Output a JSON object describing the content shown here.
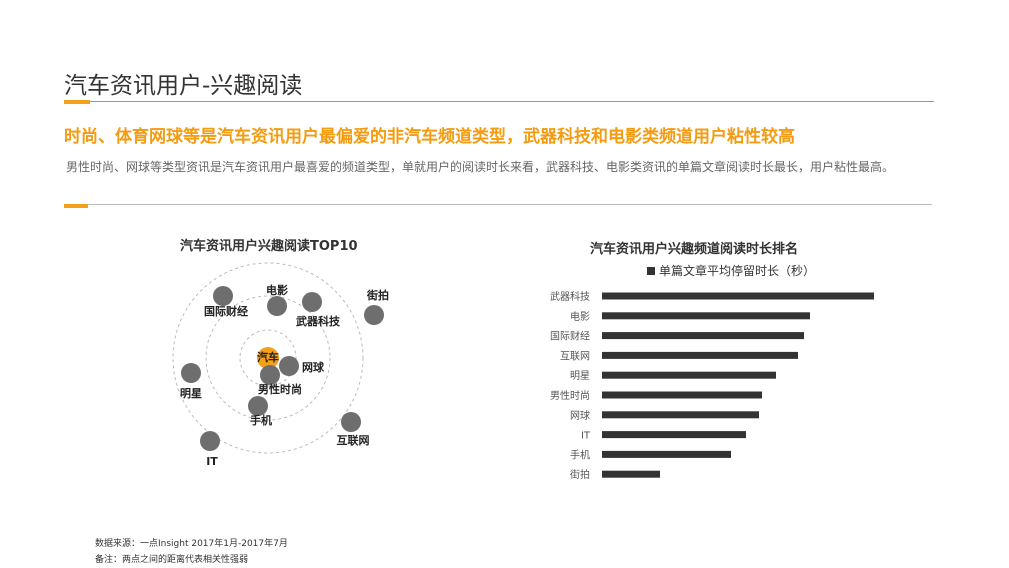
{
  "page": {
    "title": "汽车资讯用户-兴趣阅读",
    "headline": "时尚、体育网球等是汽车资讯用户最偏爱的非汽车频道类型，武器科技和电影类频道用户粘性较高",
    "description": "男性时尚、网球等类型资讯是汽车资讯用户最喜爱的频道类型，单就用户的阅读时长来看，武器科技、电影类资讯的单篇文章阅读时长最长，用户粘性最高。"
  },
  "colors": {
    "accent": "#f5a01a",
    "headline": "#f39c12",
    "bubble": "#6e6e6e",
    "bar": "#333333"
  },
  "chart_data": [
    {
      "type": "scatter",
      "title": "汽车资讯用户兴趣阅读TOP10",
      "center": "汽车",
      "points": [
        {
          "label": "汽车",
          "distance": 0,
          "center": true
        },
        {
          "label": "网球",
          "distance": 1
        },
        {
          "label": "男性时尚",
          "distance": 1
        },
        {
          "label": "电影",
          "distance": 2
        },
        {
          "label": "武器科技",
          "distance": 2
        },
        {
          "label": "手机",
          "distance": 2
        },
        {
          "label": "国际财经",
          "distance": 3
        },
        {
          "label": "明星",
          "distance": 3
        },
        {
          "label": "IT",
          "distance": 4
        },
        {
          "label": "互联网",
          "distance": 4
        },
        {
          "label": "街拍",
          "distance": 5
        }
      ]
    },
    {
      "type": "bar",
      "orientation": "horizontal",
      "title": "汽车资讯用户兴趣频道阅读时长排名",
      "legend": "单篇文章平均停留时长（秒）",
      "categories": [
        "武器科技",
        "电影",
        "国际财经",
        "互联网",
        "明星",
        "男性时尚",
        "网球",
        "IT",
        "手机",
        "街拍"
      ],
      "values": [
        272,
        208,
        202,
        196,
        174,
        160,
        157,
        144,
        129,
        58
      ]
    }
  ],
  "footnotes": {
    "source": "数据来源：一点Insight   2017年1月-2017年7月",
    "remark": "备注：两点之间的距离代表相关性强弱"
  }
}
